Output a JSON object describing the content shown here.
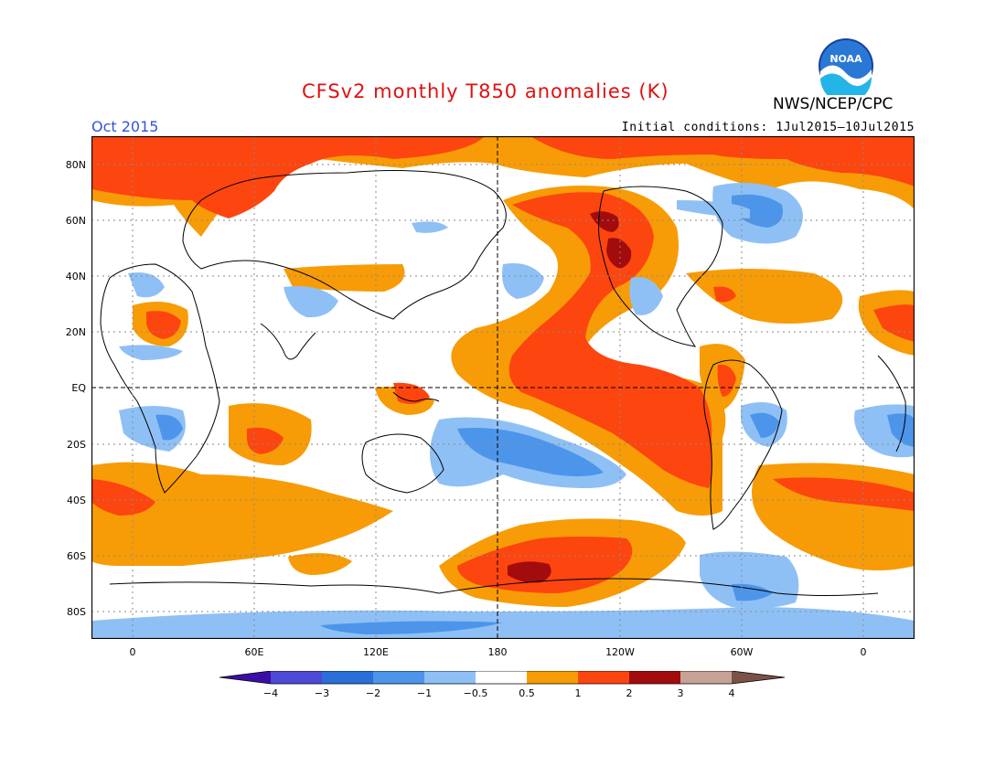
{
  "header": {
    "title": "CFSv2 monthly T850 anomalies (K)",
    "agency": "NWS/NCEP/CPC",
    "period": "Oct 2015",
    "initial_conditions": "Initial conditions: 1Jul2015–10Jul2015",
    "logo_text": "NOAA",
    "logo_icon": "noaa-logo-icon"
  },
  "axes": {
    "lat_labels": [
      "80N",
      "60N",
      "40N",
      "20N",
      "EQ",
      "20S",
      "40S",
      "60S",
      "80S"
    ],
    "lon_labels": [
      "0",
      "60E",
      "120E",
      "180",
      "120W",
      "60W",
      "0"
    ]
  },
  "colorbar": {
    "labels": [
      "−4",
      "−3",
      "−2",
      "−1",
      "−0.5",
      "0.5",
      "1",
      "2",
      "3",
      "4"
    ],
    "colors": [
      "#3a0fa8",
      "#4b49d6",
      "#2a6fd8",
      "#4d95ea",
      "#8fc0f5",
      "#ffffff",
      "#f79c06",
      "#fd4510",
      "#a20c0c",
      "#c6a294",
      "#7a5246"
    ]
  },
  "palette": {
    "pos_weak": "#f79c06",
    "pos_mid": "#fd4510",
    "pos_strong": "#a20c0c",
    "neg_weak": "#8fc0f5",
    "neg_mid": "#4d95ea",
    "neg_strong": "#2a6fd8",
    "title_color": "#e01010",
    "period_color": "#2d56d8"
  }
}
